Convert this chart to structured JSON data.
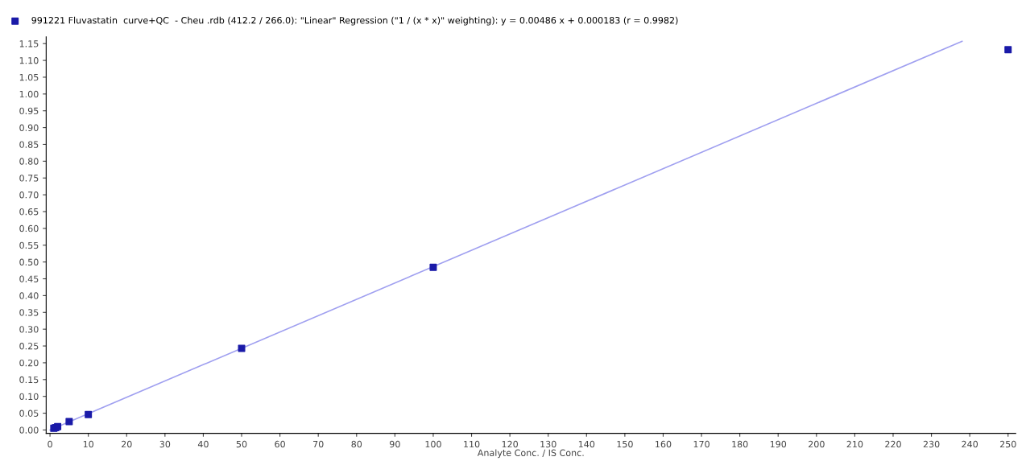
{
  "chart_data": {
    "type": "scatter",
    "xlabel": "Analyte Conc. / IS Conc.",
    "series": [
      {
        "name": "991221 Fluvastatin  curve+QC  - Cheu .rdb (412.2 / 266.0): \"Linear\" Regression (\"1 / (x * x)\" weighting): y = 0.00486 x + 0.000183 (r = 0.9982)",
        "color": "#1a1aa8",
        "marker": "square",
        "x": [
          1,
          1.5,
          2,
          5,
          10,
          50,
          100,
          250
        ],
        "values": [
          0.005,
          0.007,
          0.01,
          0.025,
          0.046,
          0.243,
          0.484,
          1.132
        ]
      },
      {
        "type": "line",
        "color": "#a0a0f0",
        "x": [
          0,
          238
        ],
        "values": [
          0,
          1.157
        ]
      }
    ],
    "xlim": [
      -1,
      252
    ],
    "ylim": [
      -0.01,
      1.17
    ],
    "xticks": [
      0,
      10,
      20,
      30,
      40,
      50,
      60,
      70,
      80,
      90,
      100,
      110,
      120,
      130,
      140,
      150,
      160,
      170,
      180,
      190,
      200,
      210,
      220,
      230,
      240,
      250
    ],
    "yticks": [
      {
        "value": 0,
        "label": "0.00"
      },
      {
        "value": 0.05,
        "label": "0.05"
      },
      {
        "value": 0.1,
        "label": "0.10"
      },
      {
        "value": 0.15,
        "label": "0.15"
      },
      {
        "value": 0.2,
        "label": "0.20"
      },
      {
        "value": 0.25,
        "label": "0.25"
      },
      {
        "value": 0.3,
        "label": "0.30"
      },
      {
        "value": 0.35,
        "label": "0.35"
      },
      {
        "value": 0.4,
        "label": "0.40"
      },
      {
        "value": 0.45,
        "label": "0.45"
      },
      {
        "value": 0.5,
        "label": "0.50"
      },
      {
        "value": 0.55,
        "label": "0.55"
      },
      {
        "value": 0.6,
        "label": "0.60"
      },
      {
        "value": 0.65,
        "label": "0.65"
      },
      {
        "value": 0.7,
        "label": "0.70"
      },
      {
        "value": 0.75,
        "label": "0.75"
      },
      {
        "value": 0.8,
        "label": "0.80"
      },
      {
        "value": 0.85,
        "label": "0.85"
      },
      {
        "value": 0.9,
        "label": "0.90"
      },
      {
        "value": 0.95,
        "label": "0.95"
      },
      {
        "value": 1.0,
        "label": "1.00"
      },
      {
        "value": 1.05,
        "label": "1.05"
      },
      {
        "value": 1.1,
        "label": "1.10"
      },
      {
        "value": 1.15,
        "label": "1.15"
      }
    ],
    "legend": "top left",
    "grid": false
  }
}
